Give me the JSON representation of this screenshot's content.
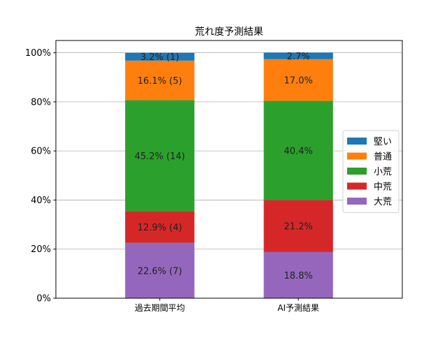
{
  "chart_data": {
    "type": "bar",
    "stacked": true,
    "title": "荒れ度予測結果",
    "xlabel": "",
    "ylabel": "",
    "categories": [
      "過去期間平均",
      "AI予測結果"
    ],
    "ylim": [
      0,
      105
    ],
    "yticks": [
      0,
      20,
      40,
      60,
      80,
      100
    ],
    "ytick_labels": [
      "0%",
      "20%",
      "40%",
      "60%",
      "80%",
      "100%"
    ],
    "grid": "y",
    "legend_placement": "center-right",
    "series": [
      {
        "name": "大荒",
        "color": "#9467bd",
        "values": [
          22.6,
          18.8
        ],
        "labels": [
          "22.6% (7)",
          "18.8%"
        ]
      },
      {
        "name": "中荒",
        "color": "#d62728",
        "values": [
          12.9,
          21.2
        ],
        "labels": [
          "12.9% (4)",
          "21.2%"
        ]
      },
      {
        "name": "小荒",
        "color": "#2ca02c",
        "values": [
          45.2,
          40.4
        ],
        "labels": [
          "45.2% (14)",
          "40.4%"
        ]
      },
      {
        "name": "普通",
        "color": "#ff7f0e",
        "values": [
          16.1,
          17.0
        ],
        "labels": [
          "16.1% (5)",
          "17.0%"
        ]
      },
      {
        "name": "堅い",
        "color": "#1f77b4",
        "values": [
          3.2,
          2.7
        ],
        "labels": [
          "3.2% (1)",
          "2.7%"
        ]
      }
    ]
  }
}
